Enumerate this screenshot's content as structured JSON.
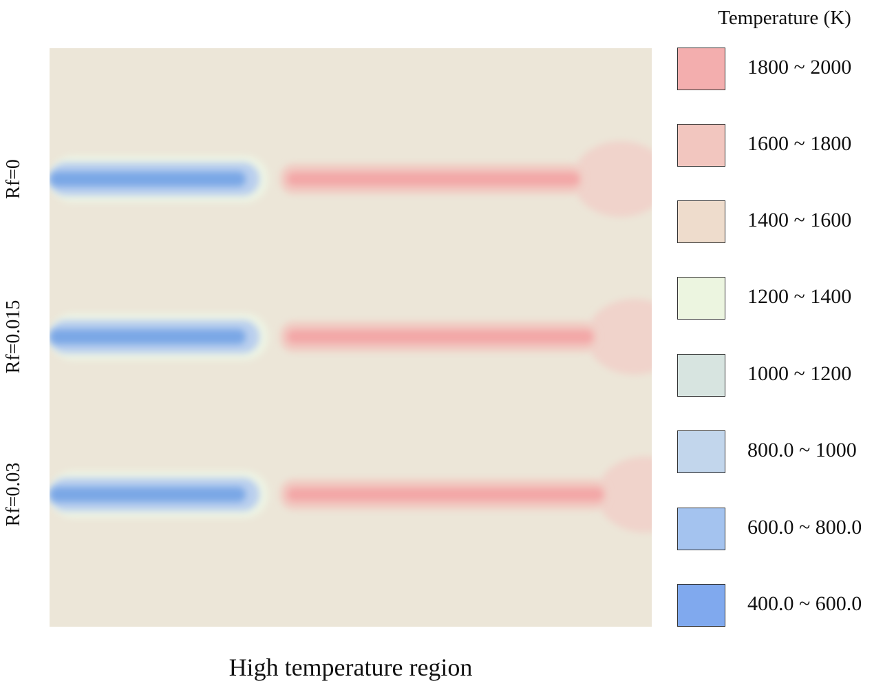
{
  "chart_data": {
    "type": "heatmap",
    "background_color": "#ece6d8",
    "rows": [
      {
        "label": "Rf=0",
        "cold_color": "#7aa7e6",
        "hot_color": "#f3a7a7"
      },
      {
        "label": "Rf=0.015",
        "cold_color": "#7aa7e6",
        "hot_color": "#f3a7a7"
      },
      {
        "label": "Rf=0.03",
        "cold_color": "#7aa7e6",
        "hot_color": "#f3a7a7"
      }
    ],
    "legend": {
      "title": "Temperature (K)",
      "placement": "right",
      "entries": [
        {
          "label": "1800  ~ 2000",
          "color": "#f3aeae"
        },
        {
          "label": "1600  ~ 1800",
          "color": "#f2c6bf"
        },
        {
          "label": "1400  ~ 1600",
          "color": "#eedccc"
        },
        {
          "label": "1200  ~ 1400",
          "color": "#ecf5e0"
        },
        {
          "label": "1000  ~ 1200",
          "color": "#d7e4e0"
        },
        {
          "label": "800.0 ~ 1000",
          "color": "#c2d6ec"
        },
        {
          "label": "600.0 ~ 800.0",
          "color": "#a4c3ef"
        },
        {
          "label": "400.0 ~ 600.0",
          "color": "#80a9ee"
        }
      ]
    },
    "caption": "High temperature region"
  }
}
